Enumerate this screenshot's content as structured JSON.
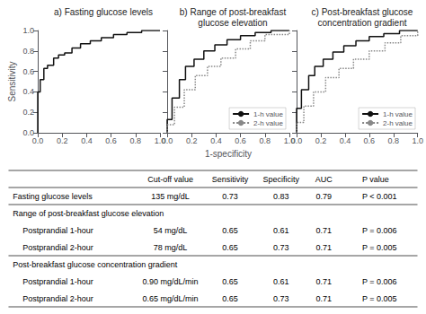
{
  "chart_data": [
    {
      "type": "step",
      "title": "a) Fasting glucose levels",
      "ylabel": "Sensitivity",
      "x": [
        0.0,
        0.0,
        0.02,
        0.02,
        0.05,
        0.05,
        0.08,
        0.08,
        0.13,
        0.13,
        0.17,
        0.17,
        0.22,
        0.22,
        0.28,
        0.28,
        0.35,
        0.35,
        0.43,
        0.43,
        0.52,
        0.52,
        0.62,
        0.62,
        0.73,
        0.73,
        0.85,
        0.85,
        1.0
      ],
      "values": [
        0.0,
        0.4,
        0.4,
        0.52,
        0.52,
        0.63,
        0.63,
        0.66,
        0.66,
        0.73,
        0.73,
        0.76,
        0.76,
        0.78,
        0.78,
        0.83,
        0.83,
        0.87,
        0.87,
        0.9,
        0.9,
        0.93,
        0.93,
        0.96,
        0.96,
        0.98,
        0.98,
        1.0,
        1.0
      ],
      "color": "#111111",
      "line_style": "solid",
      "xlim": [
        0,
        1
      ],
      "ylim": [
        0,
        1
      ],
      "xticks": [
        {
          "value": 0,
          "label": "0.0"
        },
        0.2,
        0.4,
        0.6,
        0.8,
        {
          "value": 1,
          "label": "1.0"
        }
      ],
      "yticks": [
        {
          "value": 0,
          "label": "0.0"
        },
        0.2,
        0.4,
        0.6,
        0.8,
        {
          "value": 1,
          "label": "1.0"
        }
      ],
      "grid": false
    },
    {
      "type": "step",
      "title": "b) Range of post-breakfast\nglucose elevation",
      "xlabel": "1-specificity",
      "series": [
        {
          "name": "1-h value",
          "color": "#111111",
          "line_style": "solid",
          "x": [
            0.0,
            0.0,
            0.04,
            0.04,
            0.1,
            0.1,
            0.15,
            0.15,
            0.22,
            0.22,
            0.3,
            0.3,
            0.39,
            0.39,
            0.49,
            0.49,
            0.6,
            0.6,
            0.72,
            0.72,
            0.85,
            0.85,
            1.0
          ],
          "values": [
            0.0,
            0.13,
            0.13,
            0.34,
            0.34,
            0.52,
            0.52,
            0.65,
            0.65,
            0.72,
            0.72,
            0.8,
            0.8,
            0.86,
            0.86,
            0.91,
            0.91,
            0.95,
            0.95,
            0.98,
            0.98,
            1.0,
            1.0
          ]
        },
        {
          "name": "2-h value",
          "color": "#888888",
          "line_style": "dotted",
          "x": [
            0.0,
            0.0,
            0.06,
            0.06,
            0.14,
            0.14,
            0.23,
            0.23,
            0.33,
            0.33,
            0.44,
            0.44,
            0.56,
            0.56,
            0.68,
            0.68,
            0.8,
            0.8,
            1.0
          ],
          "values": [
            0.0,
            0.08,
            0.08,
            0.25,
            0.25,
            0.42,
            0.42,
            0.56,
            0.56,
            0.65,
            0.65,
            0.73,
            0.73,
            0.82,
            0.82,
            0.9,
            0.9,
            0.96,
            1.0
          ]
        }
      ],
      "xlim": [
        0,
        1
      ],
      "ylim": [
        0,
        1
      ],
      "xticks": [
        {
          "value": 0,
          "label": "0.0"
        },
        0.2,
        0.4,
        0.6,
        0.8,
        {
          "value": 1,
          "label": "1.0"
        }
      ],
      "yticks": [
        {
          "value": 0,
          "label": "0.0"
        },
        0.2,
        0.4,
        0.6,
        0.8,
        {
          "value": 1,
          "label": "1.0"
        }
      ],
      "tick_labels": "x",
      "legend": "lower right",
      "grid": false
    },
    {
      "type": "step",
      "title": "c) Post-breakfast glucose\nconcentration gradient",
      "series": [
        {
          "name": "1-h value",
          "color": "#111111",
          "line_style": "solid",
          "x": [
            0.0,
            0.0,
            0.04,
            0.04,
            0.1,
            0.1,
            0.15,
            0.15,
            0.22,
            0.22,
            0.3,
            0.3,
            0.39,
            0.39,
            0.49,
            0.49,
            0.6,
            0.6,
            0.72,
            0.72,
            0.85,
            0.85,
            1.0
          ],
          "values": [
            0.0,
            0.24,
            0.24,
            0.42,
            0.42,
            0.56,
            0.56,
            0.65,
            0.65,
            0.72,
            0.72,
            0.79,
            0.79,
            0.85,
            0.85,
            0.9,
            0.9,
            0.94,
            0.94,
            0.97,
            0.97,
            1.0,
            1.0
          ]
        },
        {
          "name": "2-h value",
          "color": "#888888",
          "line_style": "dotted",
          "x": [
            0.0,
            0.0,
            0.06,
            0.06,
            0.14,
            0.14,
            0.24,
            0.24,
            0.35,
            0.35,
            0.47,
            0.47,
            0.6,
            0.6,
            0.73,
            0.73,
            0.86,
            0.86,
            1.0
          ],
          "values": [
            0.0,
            0.1,
            0.1,
            0.26,
            0.26,
            0.4,
            0.4,
            0.54,
            0.54,
            0.63,
            0.63,
            0.72,
            0.72,
            0.8,
            0.8,
            0.88,
            0.88,
            0.95,
            1.0
          ]
        }
      ],
      "xlim": [
        0,
        1
      ],
      "ylim": [
        0,
        1
      ],
      "xticks": [
        {
          "value": 0,
          "label": "0.0"
        },
        0.2,
        0.4,
        0.6,
        0.8,
        {
          "value": 1,
          "label": "1.0"
        }
      ],
      "yticks": [
        {
          "value": 0,
          "label": "0.0"
        },
        0.2,
        0.4,
        0.6,
        0.8,
        {
          "value": 1,
          "label": "1.0"
        }
      ],
      "tick_labels": "x",
      "legend": "lower right",
      "grid": false
    },
    {
      "type": "table",
      "columns": [
        null,
        "Cut-off value",
        "Sensitivity",
        "Specificity",
        "AUC",
        "P value"
      ],
      "rows": [
        [
          "Fasting glucose levels",
          "135 mg/dL",
          "0.73",
          "0.83",
          "0.79",
          "P < 0.001"
        ],
        [
          "Range of post-breakfast glucose elevation",
          null,
          null,
          null,
          null,
          null
        ],
        [
          "  Postprandial 1-hour",
          "54 mg/dL",
          "0.65",
          "0.61",
          "0.71",
          "P = 0.006"
        ],
        [
          "  Postprandial 2-hour",
          "78 mg/dL",
          "0.65",
          "0.73",
          "0.71",
          "P = 0.005"
        ],
        [
          "Post-breakfast glucose concentration gradient",
          null,
          null,
          null,
          null,
          null
        ],
        [
          "  Postprandial 1-hour",
          "0.90 mg/dL/min",
          "0.65",
          "0.61",
          "0.71",
          "P = 0.006"
        ],
        [
          "  Postprandial 2-hour",
          "0.65 mg/dL/min",
          "0.65",
          "0.73",
          "0.71",
          "P = 0.005"
        ]
      ]
    }
  ]
}
